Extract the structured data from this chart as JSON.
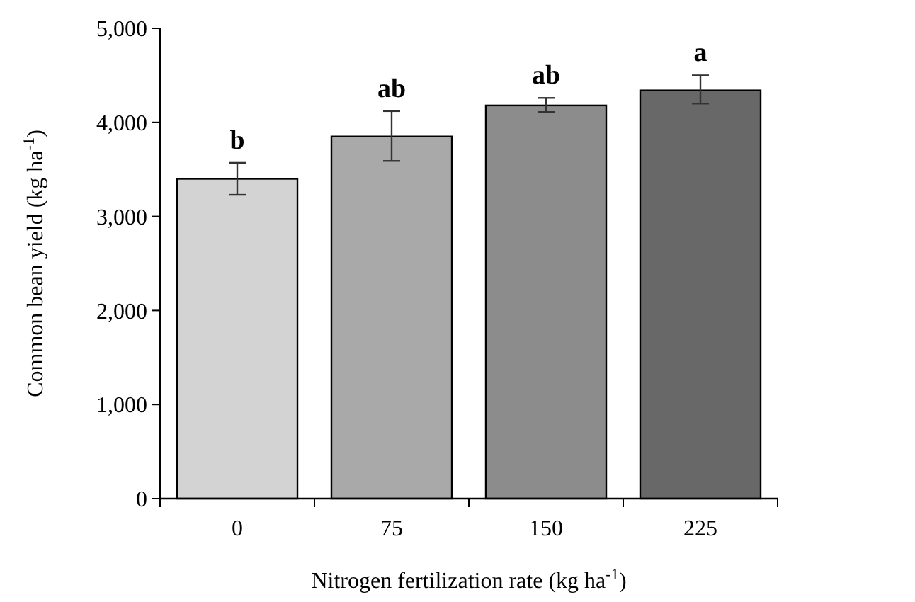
{
  "chart_data": {
    "type": "bar",
    "xlabel": "Nitrogen fertilization rate (kg ha$^{-1}$)",
    "ylabel": "Common bean yield (kg ha$^{-1}$)",
    "categories": [
      "0",
      "75",
      "150",
      "225"
    ],
    "values": [
      3400,
      3850,
      4180,
      4340
    ],
    "errors": [
      [
        3230,
        3570
      ],
      [
        3590,
        4120
      ],
      [
        4110,
        4260
      ],
      [
        4200,
        4500
      ]
    ],
    "colors": [
      "#d3d3d3",
      "#a9a9a9",
      "#8c8c8c",
      "#686868"
    ],
    "ylim": [
      0,
      5000
    ],
    "yticks": [
      {
        "value": 0,
        "label": "0"
      },
      {
        "value": 1000,
        "label": "1,000"
      },
      {
        "value": 2000,
        "label": "2,000"
      },
      {
        "value": 3000,
        "label": "3,000"
      },
      {
        "value": 4000,
        "label": "4,000"
      },
      {
        "value": 5000,
        "label": "5,000"
      }
    ],
    "annotations": [
      {
        "text": "b",
        "x": "0",
        "y": 3570
      },
      {
        "text": "ab",
        "x": "75",
        "y": 4120
      },
      {
        "text": "ab",
        "x": "150",
        "y": 4260
      },
      {
        "text": "a",
        "x": "225",
        "y": 4500
      }
    ],
    "grid": false
  }
}
